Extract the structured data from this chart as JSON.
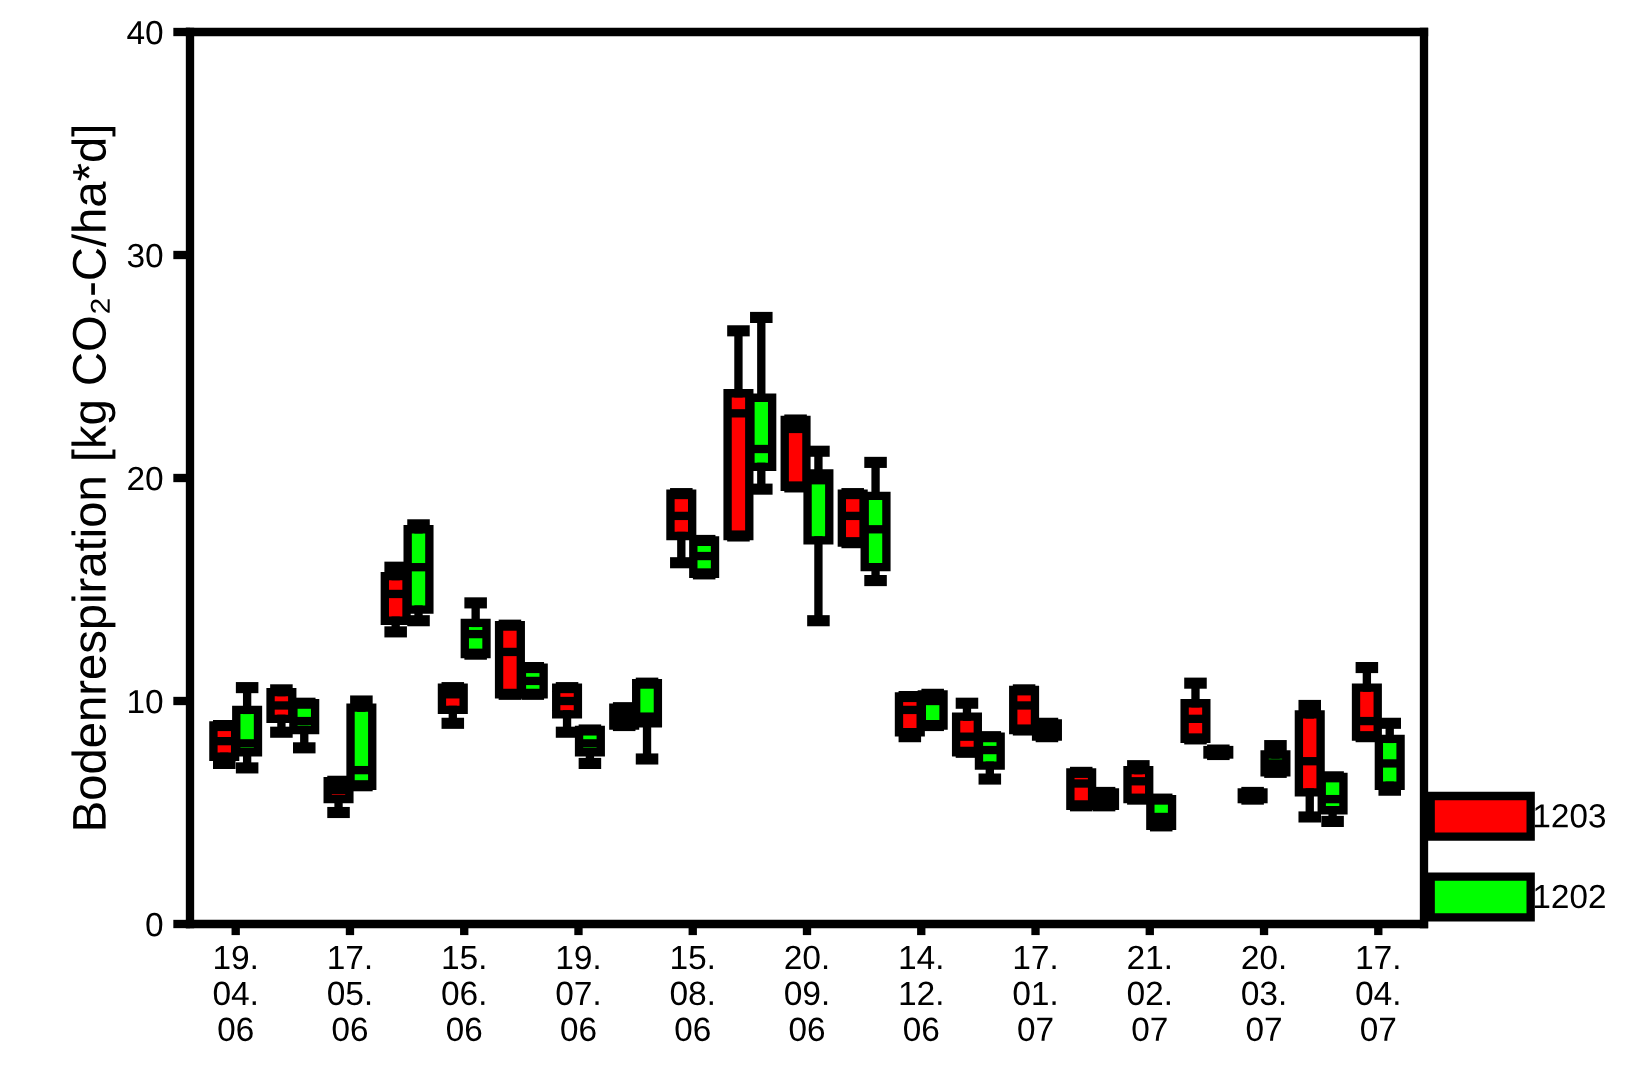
{
  "chart_data": {
    "type": "box",
    "ylabel": "Bodenrespiration [kg CO₂-C/ha*d]",
    "categories": [
      "19.\n04.\n06",
      null,
      "17.\n05.\n06",
      null,
      "15.\n06.\n06",
      null,
      "19.\n07.\n06",
      null,
      "15.\n08.\n06",
      null,
      "20.\n09.\n06",
      null,
      "14.\n12.\n06",
      null,
      "17.\n01.\n07",
      null,
      "21.\n02.\n07",
      null,
      "20.\n03.\n07",
      null,
      "17.\n04.\n07"
    ],
    "ylim": [
      0,
      40
    ],
    "yticks": [
      0,
      10,
      20,
      30,
      40
    ],
    "grid": false,
    "legend": "right",
    "series": [
      {
        "name": "1203",
        "color": "#ff0000",
        "boxes": [
          {
            "low": 7.2,
            "q1": 7.5,
            "median": 8.2,
            "q3": 8.9,
            "high": 8.9
          },
          {
            "low": 8.6,
            "q1": 9.2,
            "median": 9.8,
            "q3": 10.4,
            "high": 10.5
          },
          {
            "low": 5.0,
            "q1": 5.6,
            "median": 6.0,
            "q3": 6.4,
            "high": 6.4
          },
          {
            "low": 13.1,
            "q1": 13.6,
            "median": 14.8,
            "q3": 15.6,
            "high": 16.0
          },
          {
            "low": 9.0,
            "q1": 9.6,
            "median": 10.3,
            "q3": 10.6,
            "high": 10.6
          },
          {
            "low": 10.3,
            "q1": 10.3,
            "median": 12.2,
            "q3": 13.4,
            "high": 13.4
          },
          {
            "low": 8.6,
            "q1": 9.4,
            "median": 10.0,
            "q3": 10.6,
            "high": 10.6
          },
          {
            "low": 8.9,
            "q1": 8.9,
            "median": 9.3,
            "q3": 9.7,
            "high": 9.7
          },
          {
            "low": 16.2,
            "q1": 17.4,
            "median": 18.3,
            "q3": 19.3,
            "high": 19.3
          },
          {
            "low": 17.4,
            "q1": 17.4,
            "median": 22.9,
            "q3": 23.8,
            "high": 26.6
          },
          {
            "low": 19.6,
            "q1": 19.6,
            "median": 22.2,
            "q3": 22.6,
            "high": 22.6
          },
          {
            "low": 17.1,
            "q1": 17.1,
            "median": 18.3,
            "q3": 19.3,
            "high": 19.3
          },
          {
            "low": 8.4,
            "q1": 8.6,
            "median": 9.6,
            "q3": 10.2,
            "high": 10.2
          },
          {
            "low": 7.7,
            "q1": 7.7,
            "median": 8.4,
            "q3": 9.3,
            "high": 9.9
          },
          {
            "low": 8.7,
            "q1": 8.7,
            "median": 9.8,
            "q3": 10.5,
            "high": 10.5
          },
          {
            "low": 5.3,
            "q1": 5.3,
            "median": 6.3,
            "q3": 6.8,
            "high": 6.8
          },
          {
            "low": 5.6,
            "q1": 5.6,
            "median": 6.4,
            "q3": 6.9,
            "high": 7.1
          },
          {
            "low": 8.3,
            "q1": 8.3,
            "median": 9.2,
            "q3": 9.9,
            "high": 10.8
          },
          {
            "low": 5.6,
            "q1": 5.6,
            "median": 5.8,
            "q3": 5.9,
            "high": 5.9
          },
          {
            "low": 4.8,
            "q1": 5.9,
            "median": 7.3,
            "q3": 9.4,
            "high": 9.8
          },
          {
            "low": 8.4,
            "q1": 8.4,
            "median": 9.1,
            "q3": 10.6,
            "high": 11.5
          }
        ]
      },
      {
        "name": "1202",
        "color": "#00ff00",
        "boxes": [
          {
            "low": 7.0,
            "q1": 7.7,
            "median": 8.1,
            "q3": 9.6,
            "high": 10.6
          },
          {
            "low": 7.9,
            "q1": 8.7,
            "median": 9.1,
            "q3": 9.9,
            "high": 9.9
          },
          {
            "low": 6.2,
            "q1": 6.2,
            "median": 6.9,
            "q3": 9.7,
            "high": 10.0
          },
          {
            "low": 13.6,
            "q1": 14.1,
            "median": 16.0,
            "q3": 17.7,
            "high": 17.9
          },
          {
            "low": 12.1,
            "q1": 12.1,
            "median": 13.0,
            "q3": 13.5,
            "high": 14.4
          },
          {
            "low": 10.3,
            "q1": 10.3,
            "median": 10.9,
            "q3": 11.5,
            "high": 11.5
          },
          {
            "low": 7.2,
            "q1": 7.7,
            "median": 8.1,
            "q3": 8.7,
            "high": 8.7
          },
          {
            "low": 7.4,
            "q1": 9.0,
            "median": 9.3,
            "q3": 10.8,
            "high": 10.8
          },
          {
            "low": 15.7,
            "q1": 15.7,
            "median": 16.5,
            "q3": 17.2,
            "high": 17.2
          },
          {
            "low": 19.5,
            "q1": 20.5,
            "median": 21.3,
            "q3": 23.6,
            "high": 27.2
          },
          {
            "low": 13.6,
            "q1": 17.2,
            "median": 19.9,
            "q3": 20.2,
            "high": 21.2
          },
          {
            "low": 15.4,
            "q1": 16.0,
            "median": 17.7,
            "q3": 19.2,
            "high": 20.7
          },
          {
            "low": 8.9,
            "q1": 8.9,
            "median": 10.0,
            "q3": 10.3,
            "high": 10.3
          },
          {
            "low": 6.5,
            "q1": 7.1,
            "median": 7.8,
            "q3": 8.4,
            "high": 8.4
          },
          {
            "low": 8.4,
            "q1": 8.4,
            "median": 8.7,
            "q3": 9.0,
            "high": 9.0
          },
          {
            "low": 5.3,
            "q1": 5.3,
            "median": 5.6,
            "q3": 5.9,
            "high": 5.9
          },
          {
            "low": 4.4,
            "q1": 4.4,
            "median": 4.8,
            "q3": 5.6,
            "high": 5.6
          },
          {
            "low": 7.6,
            "q1": 7.6,
            "median": 7.7,
            "q3": 7.8,
            "high": 7.8
          },
          {
            "low": 6.8,
            "q1": 6.8,
            "median": 7.2,
            "q3": 7.6,
            "high": 8.0
          },
          {
            "low": 4.6,
            "q1": 5.1,
            "median": 5.6,
            "q3": 6.6,
            "high": 6.6
          },
          {
            "low": 6.0,
            "q1": 6.2,
            "median": 7.2,
            "q3": 8.3,
            "high": 9.0
          }
        ]
      }
    ]
  }
}
